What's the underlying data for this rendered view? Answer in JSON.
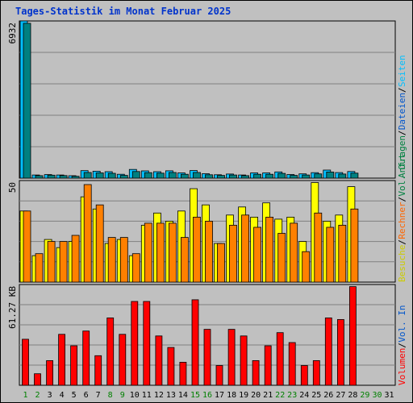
{
  "title": "Tages-Statistik im Monat Februar 2025",
  "chart_data": [
    {
      "type": "bar",
      "name": "hits-files",
      "max_label": "6932",
      "ylim": [
        0,
        6932
      ],
      "series": [
        {
          "name": "Anfragen",
          "color": "#00bfff",
          "values": [
            6932,
            140,
            155,
            140,
            105,
            330,
            305,
            285,
            170,
            385,
            320,
            285,
            325,
            230,
            335,
            195,
            150,
            180,
            140,
            230,
            230,
            275,
            160,
            190,
            240,
            355,
            245,
            290
          ]
        },
        {
          "name": "Dateien",
          "color": "#008080",
          "values": [
            6830,
            110,
            130,
            115,
            80,
            250,
            230,
            215,
            120,
            290,
            240,
            220,
            250,
            170,
            250,
            150,
            120,
            140,
            110,
            170,
            170,
            210,
            120,
            140,
            190,
            270,
            180,
            220
          ]
        }
      ],
      "right_labels": [
        {
          "text": "Anfragen",
          "color": "#008040"
        },
        {
          "text": "Dateien",
          "color": "#0055cc"
        },
        {
          "text": "Seiten",
          "color": "#00bfff"
        }
      ]
    },
    {
      "type": "bar",
      "name": "pages-visits",
      "max_label": "50",
      "ylim": [
        0,
        50
      ],
      "series": [
        {
          "name": "Besuche",
          "color": "#ffff00",
          "values": [
            35,
            13,
            21,
            17,
            20,
            42,
            36,
            19,
            21,
            13,
            28,
            34,
            30,
            35,
            46,
            38,
            19,
            33,
            37,
            32,
            39,
            31,
            32,
            20,
            49,
            30,
            33,
            47
          ]
        },
        {
          "name": "Rechner",
          "color": "#ff8000",
          "values": [
            35,
            14,
            20,
            20,
            23,
            48,
            38,
            22,
            22,
            14,
            29,
            29,
            29,
            22,
            32,
            30,
            19,
            28,
            33,
            27,
            32,
            24,
            29,
            15,
            34,
            27,
            28,
            36
          ]
        }
      ],
      "right_labels": [
        {
          "text": "Besuche",
          "color": "#cccc00"
        },
        {
          "text": "Rechner",
          "color": "#ff6600"
        },
        {
          "text": "Vol. Out",
          "color": "#008040"
        }
      ]
    },
    {
      "type": "bar",
      "name": "volume",
      "max_label": "61.27 KB",
      "ylim": [
        0,
        61.27
      ],
      "series": [
        {
          "name": "Volumen",
          "color": "#ff0000",
          "values": [
            28,
            7,
            15,
            31,
            24,
            33,
            18,
            41,
            31,
            51,
            51,
            30,
            23,
            14,
            52,
            34,
            12,
            34,
            30,
            15,
            24,
            32,
            26,
            12,
            15,
            41,
            40,
            60
          ]
        }
      ],
      "right_labels": [
        {
          "text": "Volumen",
          "color": "#ff0000"
        },
        {
          "text": "Vol. In",
          "color": "#0055cc"
        }
      ]
    }
  ],
  "x_labels": [
    {
      "text": "1",
      "color": "#008000"
    },
    {
      "text": "2",
      "color": "#008000"
    },
    {
      "text": "3",
      "color": "#000000"
    },
    {
      "text": "4",
      "color": "#000000"
    },
    {
      "text": "5",
      "color": "#000000"
    },
    {
      "text": "6",
      "color": "#000000"
    },
    {
      "text": "7",
      "color": "#000000"
    },
    {
      "text": "8",
      "color": "#008000"
    },
    {
      "text": "9",
      "color": "#008000"
    },
    {
      "text": "10",
      "color": "#000000"
    },
    {
      "text": "11",
      "color": "#000000"
    },
    {
      "text": "12",
      "color": "#000000"
    },
    {
      "text": "13",
      "color": "#000000"
    },
    {
      "text": "14",
      "color": "#000000"
    },
    {
      "text": "15",
      "color": "#008000"
    },
    {
      "text": "16",
      "color": "#008000"
    },
    {
      "text": "17",
      "color": "#000000"
    },
    {
      "text": "18",
      "color": "#000000"
    },
    {
      "text": "19",
      "color": "#000000"
    },
    {
      "text": "20",
      "color": "#000000"
    },
    {
      "text": "21",
      "color": "#000000"
    },
    {
      "text": "22",
      "color": "#008000"
    },
    {
      "text": "23",
      "color": "#008000"
    },
    {
      "text": "24",
      "color": "#000000"
    },
    {
      "text": "25",
      "color": "#000000"
    },
    {
      "text": "26",
      "color": "#000000"
    },
    {
      "text": "27",
      "color": "#000000"
    },
    {
      "text": "28",
      "color": "#000000"
    },
    {
      "text": "29",
      "color": "#008000"
    },
    {
      "text": "30",
      "color": "#008000"
    },
    {
      "text": "31",
      "color": "#000000"
    }
  ]
}
